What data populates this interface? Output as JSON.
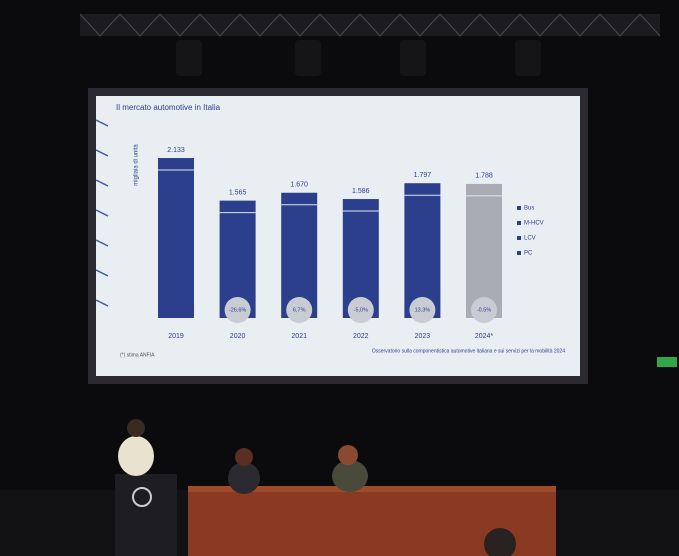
{
  "chart_data": {
    "type": "bar",
    "title": "Il mercato automotive in Italia",
    "y_label": "migliaia di unità",
    "categories": [
      "2019",
      "2020",
      "2021",
      "2022",
      "2023",
      "2024*"
    ],
    "values": [
      2133,
      1565,
      1670,
      1586,
      1797,
      1788
    ],
    "value_labels": [
      "2.133",
      "1.565",
      "1.670",
      "1.586",
      "1.797",
      "1.788"
    ],
    "change_labels": [
      null,
      "-26,6%",
      "6,7%",
      "-5,0%",
      "13,3%",
      "-0,5%"
    ],
    "colors": [
      "#2b3f8c",
      "#2b3f8c",
      "#2b3f8c",
      "#2b3f8c",
      "#2b3f8c",
      "#a9adb3"
    ],
    "legend": [
      "Bus",
      "M-HCV",
      "LCV",
      "PC"
    ],
    "footnote": "(*) stima ANFIA",
    "source": "Osservatorio sulla componentistica automotive italiana e sui servizi per la mobilità 2024"
  }
}
